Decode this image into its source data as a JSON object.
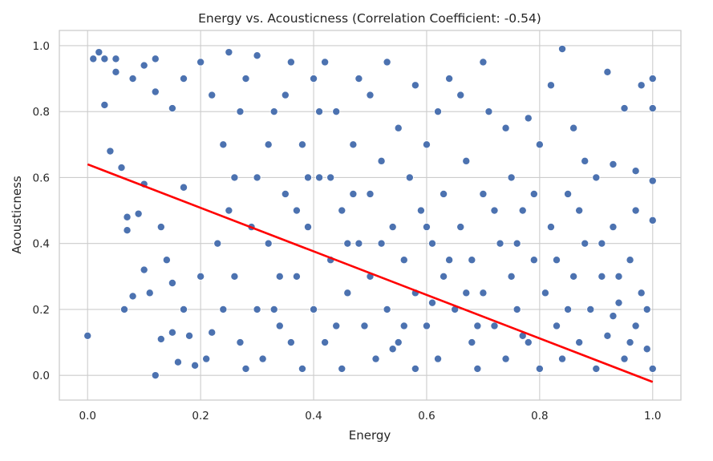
{
  "chart_data": {
    "type": "scatter",
    "title": "Energy vs. Acousticness (Correlation Coefficient: -0.54)",
    "xlabel": "Energy",
    "ylabel": "Acousticness",
    "xlim": [
      -0.05,
      1.05
    ],
    "ylim": [
      -0.075,
      1.046
    ],
    "xticks": [
      0.0,
      0.2,
      0.4,
      0.6,
      0.8,
      1.0
    ],
    "xtick_labels": [
      "0.0",
      "0.2",
      "0.4",
      "0.6",
      "0.8",
      "1.0"
    ],
    "yticks": [
      0.0,
      0.2,
      0.4,
      0.6,
      0.8,
      1.0
    ],
    "ytick_labels": [
      "0.0",
      "0.2",
      "0.4",
      "0.6",
      "0.8",
      "1.0"
    ],
    "grid": true,
    "correlation": -0.54,
    "point_color": "#4c72b0",
    "line_color": "#ff0000",
    "regression": {
      "intercept": 0.64,
      "slope": -0.66,
      "x_range": [
        0.0,
        1.0
      ]
    },
    "points": [
      [
        0.0,
        0.12
      ],
      [
        0.01,
        0.96
      ],
      [
        0.02,
        0.98
      ],
      [
        0.03,
        0.82
      ],
      [
        0.03,
        0.96
      ],
      [
        0.04,
        0.68
      ],
      [
        0.05,
        0.92
      ],
      [
        0.06,
        0.63
      ],
      [
        0.065,
        0.2
      ],
      [
        0.07,
        0.44
      ],
      [
        0.07,
        0.48
      ],
      [
        0.08,
        0.24
      ],
      [
        0.09,
        0.49
      ],
      [
        0.1,
        0.58
      ],
      [
        0.1,
        0.32
      ],
      [
        0.1,
        0.94
      ],
      [
        0.11,
        0.25
      ],
      [
        0.12,
        0.0
      ],
      [
        0.12,
        0.96
      ],
      [
        0.13,
        0.45
      ],
      [
        0.13,
        0.11
      ],
      [
        0.14,
        0.35
      ],
      [
        0.15,
        0.28
      ],
      [
        0.15,
        0.13
      ],
      [
        0.16,
        0.04
      ],
      [
        0.17,
        0.2
      ],
      [
        0.17,
        0.57
      ],
      [
        0.18,
        0.12
      ],
      [
        0.19,
        0.03
      ],
      [
        0.2,
        0.3
      ],
      [
        0.21,
        0.05
      ],
      [
        0.22,
        0.13
      ],
      [
        0.15,
        0.81
      ],
      [
        0.12,
        0.86
      ],
      [
        0.17,
        0.9
      ],
      [
        0.08,
        0.9
      ],
      [
        0.05,
        0.96
      ],
      [
        0.2,
        0.95
      ],
      [
        0.22,
        0.85
      ],
      [
        0.24,
        0.7
      ],
      [
        0.25,
        0.5
      ],
      [
        0.26,
        0.3
      ],
      [
        0.27,
        0.1
      ],
      [
        0.28,
        0.02
      ],
      [
        0.28,
        0.9
      ],
      [
        0.3,
        0.6
      ],
      [
        0.3,
        0.2
      ],
      [
        0.31,
        0.05
      ],
      [
        0.32,
        0.4
      ],
      [
        0.33,
        0.8
      ],
      [
        0.34,
        0.15
      ],
      [
        0.35,
        0.55
      ],
      [
        0.36,
        0.95
      ],
      [
        0.37,
        0.3
      ],
      [
        0.38,
        0.7
      ],
      [
        0.38,
        0.02
      ],
      [
        0.39,
        0.45
      ],
      [
        0.4,
        0.9
      ],
      [
        0.4,
        0.2
      ],
      [
        0.41,
        0.6
      ],
      [
        0.42,
        0.1
      ],
      [
        0.43,
        0.35
      ],
      [
        0.44,
        0.8
      ],
      [
        0.45,
        0.5
      ],
      [
        0.45,
        0.02
      ],
      [
        0.46,
        0.25
      ],
      [
        0.47,
        0.7
      ],
      [
        0.48,
        0.4
      ],
      [
        0.49,
        0.15
      ],
      [
        0.5,
        0.85
      ],
      [
        0.5,
        0.55
      ],
      [
        0.5,
        0.3
      ],
      [
        0.51,
        0.05
      ],
      [
        0.52,
        0.65
      ],
      [
        0.53,
        0.2
      ],
      [
        0.54,
        0.45
      ],
      [
        0.55,
        0.75
      ],
      [
        0.55,
        0.1
      ],
      [
        0.56,
        0.35
      ],
      [
        0.57,
        0.6
      ],
      [
        0.58,
        0.02
      ],
      [
        0.58,
        0.25
      ],
      [
        0.59,
        0.5
      ],
      [
        0.6,
        0.7
      ],
      [
        0.6,
        0.15
      ],
      [
        0.61,
        0.4
      ],
      [
        0.62,
        0.05
      ],
      [
        0.63,
        0.3
      ],
      [
        0.63,
        0.55
      ],
      [
        0.64,
        0.9
      ],
      [
        0.65,
        0.2
      ],
      [
        0.66,
        0.45
      ],
      [
        0.67,
        0.65
      ],
      [
        0.68,
        0.1
      ],
      [
        0.68,
        0.35
      ],
      [
        0.69,
        0.02
      ],
      [
        0.7,
        0.55
      ],
      [
        0.7,
        0.25
      ],
      [
        0.71,
        0.8
      ],
      [
        0.72,
        0.15
      ],
      [
        0.73,
        0.4
      ],
      [
        0.74,
        0.05
      ],
      [
        0.75,
        0.6
      ],
      [
        0.75,
        0.3
      ],
      [
        0.76,
        0.2
      ],
      [
        0.77,
        0.5
      ],
      [
        0.78,
        0.1
      ],
      [
        0.79,
        0.35
      ],
      [
        0.8,
        0.02
      ],
      [
        0.8,
        0.7
      ],
      [
        0.81,
        0.25
      ],
      [
        0.82,
        0.45
      ],
      [
        0.83,
        0.15
      ],
      [
        0.84,
        0.99
      ],
      [
        0.84,
        0.05
      ],
      [
        0.85,
        0.55
      ],
      [
        0.86,
        0.3
      ],
      [
        0.87,
        0.1
      ],
      [
        0.88,
        0.4
      ],
      [
        0.89,
        0.2
      ],
      [
        0.9,
        0.6
      ],
      [
        0.9,
        0.02
      ],
      [
        0.91,
        0.3
      ],
      [
        0.92,
        0.92
      ],
      [
        0.92,
        0.12
      ],
      [
        0.93,
        0.45
      ],
      [
        0.94,
        0.22
      ],
      [
        0.95,
        0.81
      ],
      [
        0.95,
        0.05
      ],
      [
        0.96,
        0.35
      ],
      [
        0.97,
        0.15
      ],
      [
        0.98,
        0.88
      ],
      [
        0.98,
        0.25
      ],
      [
        0.99,
        0.08
      ],
      [
        1.0,
        0.9
      ],
      [
        1.0,
        0.81
      ],
      [
        1.0,
        0.59
      ],
      [
        1.0,
        0.47
      ],
      [
        1.0,
        0.02
      ],
      [
        0.99,
        0.2
      ],
      [
        0.97,
        0.5
      ],
      [
        0.25,
        0.98
      ],
      [
        0.3,
        0.97
      ],
      [
        0.35,
        0.85
      ],
      [
        0.42,
        0.95
      ],
      [
        0.48,
        0.9
      ],
      [
        0.53,
        0.95
      ],
      [
        0.58,
        0.88
      ],
      [
        0.62,
        0.8
      ],
      [
        0.66,
        0.85
      ],
      [
        0.7,
        0.95
      ],
      [
        0.74,
        0.75
      ],
      [
        0.78,
        0.78
      ],
      [
        0.82,
        0.88
      ],
      [
        0.86,
        0.75
      ],
      [
        0.88,
        0.65
      ],
      [
        0.93,
        0.64
      ],
      [
        0.97,
        0.62
      ],
      [
        0.23,
        0.4
      ],
      [
        0.24,
        0.2
      ],
      [
        0.26,
        0.6
      ],
      [
        0.29,
        0.45
      ],
      [
        0.32,
        0.7
      ],
      [
        0.34,
        0.3
      ],
      [
        0.36,
        0.1
      ],
      [
        0.39,
        0.6
      ],
      [
        0.41,
        0.8
      ],
      [
        0.44,
        0.15
      ],
      [
        0.47,
        0.55
      ],
      [
        0.52,
        0.4
      ],
      [
        0.56,
        0.15
      ],
      [
        0.6,
        0.45
      ],
      [
        0.64,
        0.35
      ],
      [
        0.67,
        0.25
      ],
      [
        0.72,
        0.5
      ],
      [
        0.76,
        0.4
      ],
      [
        0.79,
        0.55
      ],
      [
        0.83,
        0.35
      ],
      [
        0.87,
        0.5
      ],
      [
        0.91,
        0.4
      ],
      [
        0.94,
        0.3
      ],
      [
        0.96,
        0.1
      ],
      [
        0.93,
        0.18
      ],
      [
        0.85,
        0.2
      ],
      [
        0.77,
        0.12
      ],
      [
        0.69,
        0.15
      ],
      [
        0.61,
        0.22
      ],
      [
        0.54,
        0.08
      ],
      [
        0.46,
        0.4
      ],
      [
        0.43,
        0.6
      ],
      [
        0.37,
        0.5
      ],
      [
        0.33,
        0.2
      ],
      [
        0.27,
        0.8
      ]
    ]
  }
}
